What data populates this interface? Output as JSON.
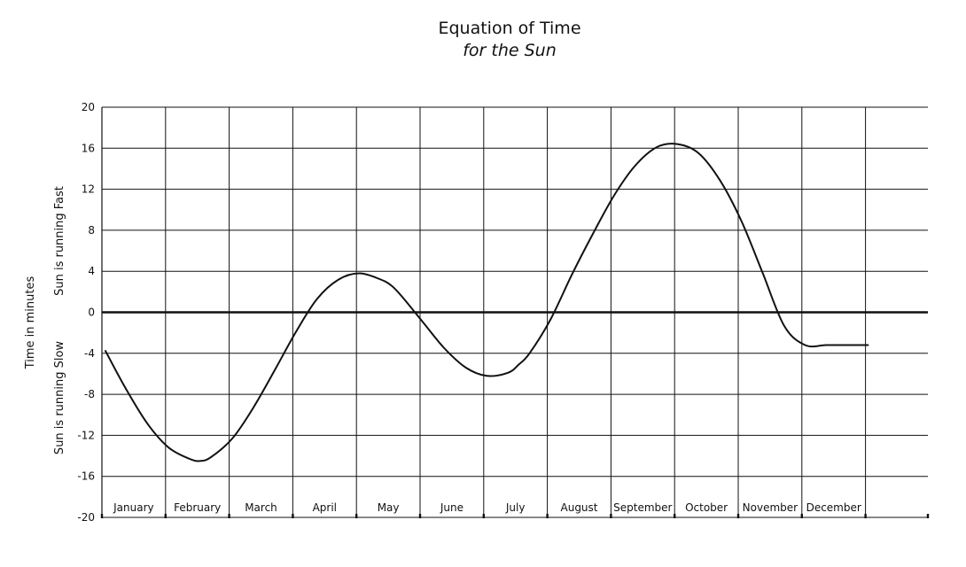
{
  "chart_data": {
    "type": "line",
    "title": "Equation of Time",
    "subtitle": "for the Sun",
    "ylabel": "Time in minutes",
    "ylabel_fast": "Sun is running Fast",
    "ylabel_slow": "Sun is running Slow",
    "ylim": [
      -20,
      20
    ],
    "yticks": [
      20,
      16,
      12,
      8,
      4,
      0,
      -4,
      -8,
      -12,
      -16,
      -20
    ],
    "yticklabels": [
      "20",
      "16",
      "12",
      "8",
      "4",
      "0",
      "-4",
      "-8",
      "-12",
      "-16",
      "-20"
    ],
    "months": [
      "January",
      "February",
      "March",
      "April",
      "May",
      "June",
      "July",
      "August",
      "September",
      "October",
      "November",
      "December"
    ],
    "xlim_months": [
      0,
      13
    ],
    "grid": true,
    "series": [
      {
        "x_month": [
          0.0,
          0.33,
          0.67,
          1.0,
          1.33,
          1.5,
          1.67,
          2.0,
          2.33,
          2.67,
          3.0,
          3.33,
          3.67,
          4.0,
          4.33,
          4.5,
          4.67,
          5.0,
          5.33,
          5.67,
          6.0,
          6.33,
          6.5,
          6.67,
          7.0,
          7.33,
          7.67,
          8.0,
          8.33,
          8.67,
          9.0,
          9.33,
          9.67,
          10.0,
          10.33,
          10.67,
          11.0,
          11.33,
          11.67,
          12.0
        ],
        "y": [
          -3.7,
          -7.5,
          -10.9,
          -13.2,
          -14.3,
          -14.5,
          -14.1,
          -12.3,
          -9.3,
          -5.6,
          -1.9,
          1.3,
          3.2,
          3.8,
          3.2,
          2.6,
          1.5,
          -1.0,
          -3.5,
          -5.4,
          -6.2,
          -5.9,
          -5.1,
          -4.0,
          -0.7,
          3.6,
          7.7,
          11.4,
          14.3,
          16.1,
          16.4,
          15.5,
          12.8,
          8.9,
          3.9,
          -1.3,
          -3.2,
          -3.2,
          -3.2,
          -3.2
        ]
      }
    ]
  }
}
